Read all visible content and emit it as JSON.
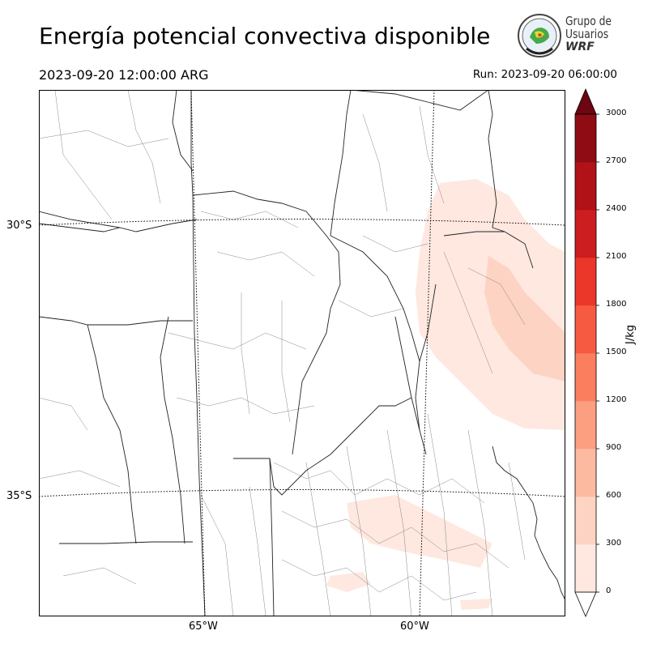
{
  "title": "Energía potencial convectiva disponible",
  "valid_time": "2023-09-20 12:00:00 ARG",
  "run_time": "Run: 2023-09-20 06:00:00",
  "logo": {
    "line1": "Grupo de",
    "line2": "Usuarios",
    "line3": "WRF"
  },
  "map": {
    "latitude_labels": [
      "30°S",
      "35°S"
    ],
    "longitude_labels": [
      "65°W",
      "60°W"
    ]
  },
  "colorbar": {
    "unit": "J/kg",
    "ticks": [
      "0",
      "300",
      "600",
      "900",
      "1200",
      "1500",
      "1800",
      "2100",
      "2400",
      "2700",
      "3000"
    ],
    "colors": [
      "#fee8e0",
      "#fdd3c3",
      "#fcbba1",
      "#fc9e80",
      "#fb7e5f",
      "#f65b42",
      "#ea372a",
      "#cc1d20",
      "#b01217",
      "#900c14",
      "#6b0612"
    ]
  }
}
